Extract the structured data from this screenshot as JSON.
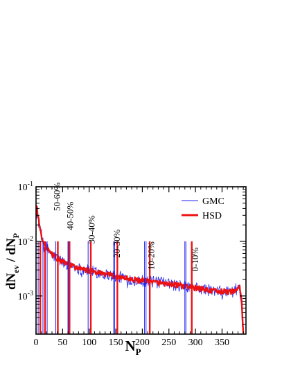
{
  "chart_data": {
    "type": "line",
    "xlabel": "N",
    "xlabel_sub": "P",
    "ylabel_parts": [
      "dN",
      "ev",
      " / dN",
      "P"
    ],
    "xlim": [
      0,
      395
    ],
    "ylim": [
      0.0002,
      0.1
    ],
    "y_scale": "log",
    "x_ticks": [
      0,
      50,
      100,
      150,
      200,
      250,
      300,
      350
    ],
    "x_tick_labels": [
      "0",
      "50",
      "100",
      "150",
      "200",
      "250",
      "300",
      "350"
    ],
    "y_ticks": [
      0.001,
      0.01,
      0.1
    ],
    "y_tick_labels": [
      {
        "base": "10",
        "exp": "-3"
      },
      {
        "base": "10",
        "exp": "-2"
      },
      {
        "base": "10",
        "exp": "-1"
      }
    ],
    "grid": false,
    "legend_position": "top-right",
    "series": [
      {
        "name": "GMC",
        "color": "#2222ee",
        "style": "thin",
        "x": [
          1,
          2,
          3,
          4,
          5,
          7,
          10,
          15,
          20,
          25,
          30,
          40,
          50,
          60,
          70,
          80,
          90,
          100,
          120,
          140,
          160,
          180,
          200,
          220,
          240,
          260,
          280,
          300,
          320,
          340,
          360,
          370,
          375,
          380,
          383,
          386,
          388,
          390
        ],
        "y": [
          0.045,
          0.04,
          0.033,
          0.028,
          0.024,
          0.018,
          0.013,
          0.0092,
          0.0075,
          0.0064,
          0.0057,
          0.0048,
          0.0042,
          0.0038,
          0.0035,
          0.0032,
          0.003,
          0.0029,
          0.0026,
          0.0024,
          0.0022,
          0.002,
          0.0019,
          0.0018,
          0.0017,
          0.0016,
          0.0015,
          0.0014,
          0.0013,
          0.0012,
          0.0012,
          0.0012,
          0.0013,
          0.0014,
          0.0011,
          0.0006,
          0.0003,
          0.0002
        ]
      },
      {
        "name": "HSD",
        "color": "#ee1111",
        "style": "thick",
        "x": [
          1,
          2,
          3,
          4,
          5,
          7,
          10,
          15,
          20,
          25,
          30,
          40,
          50,
          60,
          70,
          80,
          90,
          100,
          120,
          140,
          160,
          180,
          200,
          220,
          240,
          260,
          280,
          300,
          320,
          340,
          360,
          370,
          375,
          380,
          383,
          386,
          388,
          390
        ],
        "y": [
          0.045,
          0.04,
          0.033,
          0.028,
          0.024,
          0.018,
          0.013,
          0.0092,
          0.0075,
          0.0064,
          0.0057,
          0.0048,
          0.0042,
          0.0038,
          0.0035,
          0.0032,
          0.003,
          0.0029,
          0.0026,
          0.0024,
          0.0022,
          0.002,
          0.0019,
          0.0018,
          0.0017,
          0.0016,
          0.0015,
          0.0014,
          0.0013,
          0.0012,
          0.0012,
          0.0012,
          0.0013,
          0.0014,
          0.0014,
          0.001,
          0.0005,
          0.0002
        ]
      }
    ],
    "centrality_classes": [
      {
        "label": "50-60%",
        "gmc": [
          13,
          21
        ],
        "hsd": [
          17,
          37
        ],
        "label_x": 45,
        "label_y": 0.036
      },
      {
        "label": "40-50%",
        "gmc": [
          37,
          60
        ],
        "hsd": [
          41,
          65
        ],
        "label_x": 70,
        "label_y": 0.016
      },
      {
        "label": "30-40%",
        "gmc": [
          61,
          98
        ],
        "hsd": [
          63,
          103
        ],
        "label_x": 110,
        "label_y": 0.009
      },
      {
        "label": "20-30%",
        "gmc": [
          98,
          146
        ],
        "hsd": [
          101,
          153
        ],
        "label_x": 158,
        "label_y": 0.005
      },
      {
        "label": "10-20%",
        "gmc": [
          146,
          207
        ],
        "hsd": [
          151,
          214
        ],
        "label_x": 222,
        "label_y": 0.003
      },
      {
        "label": "0-10%",
        "gmc": [
          207,
          280
        ],
        "hsd": [
          212,
          293
        ],
        "label_x": 305,
        "label_y": 0.0028
      }
    ],
    "boundary_lines": {
      "gmc": [
        4,
        13,
        37,
        61,
        98,
        146,
        207,
        280
      ],
      "hsd": [
        8,
        17,
        41,
        63,
        103,
        153,
        214,
        293
      ],
      "extra_gmc": [
        21,
        60,
        148,
        204,
        282
      ]
    }
  }
}
